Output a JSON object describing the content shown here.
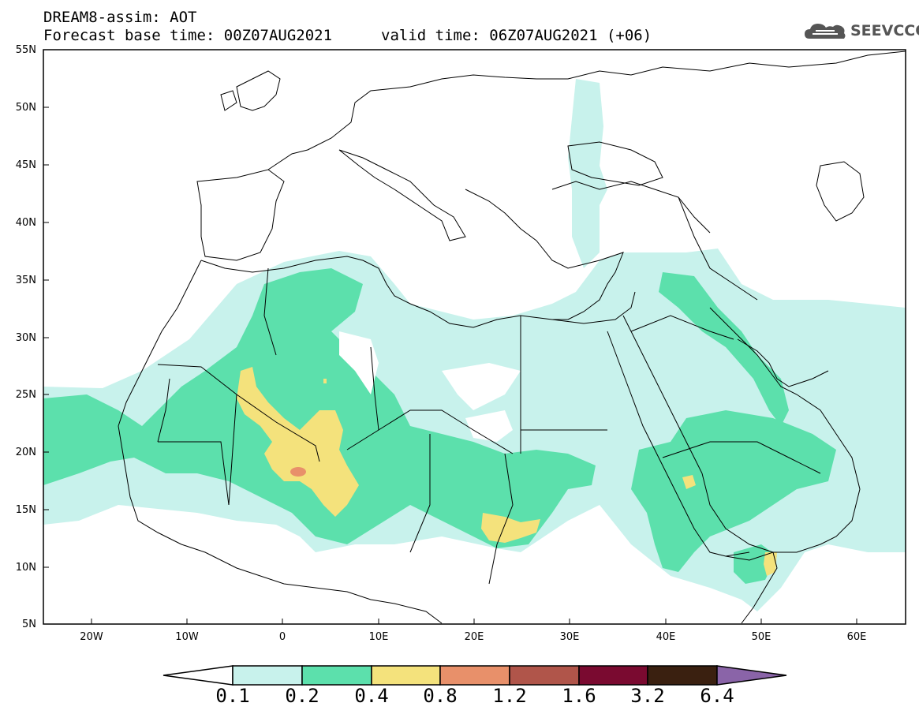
{
  "header": {
    "title": "DREAM8-assim: AOT",
    "base_time": "Forecast base time: 00Z07AUG2021",
    "valid_time": "valid time: 06Z07AUG2021 (+06)"
  },
  "logo": {
    "text": "SEEVCCC",
    "icon": "cloud-icon"
  },
  "map": {
    "projection": "lat-lon",
    "lon_range": [
      -25,
      65
    ],
    "lat_range": [
      5,
      55
    ],
    "lat_ticks": [
      "55N",
      "50N",
      "45N",
      "40N",
      "35N",
      "30N",
      "25N",
      "20N",
      "15N",
      "10N",
      "5N"
    ],
    "lon_ticks": [
      "20W",
      "10W",
      "0",
      "10E",
      "20E",
      "30E",
      "40E",
      "50E",
      "60E"
    ],
    "layer": "Aerosol optical thickness (dust)"
  },
  "colorbar": {
    "levels": [
      "0.1",
      "0.2",
      "0.4",
      "0.8",
      "1.2",
      "1.6",
      "3.2",
      "6.4"
    ],
    "colors": [
      "#c8f2ec",
      "#5ce0ac",
      "#f4e27c",
      "#e8906a",
      "#b0554a",
      "#7a0a30",
      "#3a2010",
      "#8a64a8"
    ],
    "under_color": "#ffffff"
  }
}
